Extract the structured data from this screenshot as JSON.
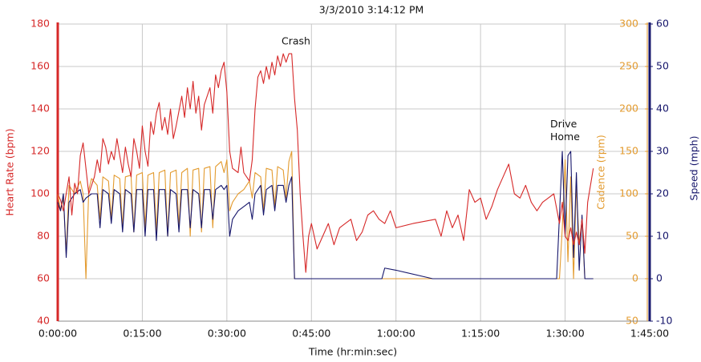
{
  "chart_data": {
    "type": "line",
    "title": "3/3/2010 3:14:12 PM",
    "xlabel": "Time (hr:min:sec)",
    "ylabel": "Heart Rate (bpm)",
    "y2label": "Cadence (rpm)",
    "y3label": "Speed (mph)",
    "annotations": [
      "Crash",
      "Drive Home"
    ],
    "xlim": [
      0,
      105
    ],
    "xticks": [
      {
        "value": 0,
        "label": "0:00:00"
      },
      {
        "value": 15,
        "label": "0:15:00"
      },
      {
        "value": 30,
        "label": "0:30:00"
      },
      {
        "value": 45,
        "label": "0:45:00"
      },
      {
        "value": 60,
        "label": "1:00:00"
      },
      {
        "value": 75,
        "label": "1:15:00"
      },
      {
        "value": 90,
        "label": "1:30:00"
      },
      {
        "value": 105,
        "label": "1:45:00"
      }
    ],
    "ylim": [
      40,
      180
    ],
    "yticks": [
      40,
      60,
      80,
      100,
      120,
      140,
      160,
      180
    ],
    "y2lim": [
      -50,
      300
    ],
    "y2ticks": [
      -50,
      0,
      50,
      100,
      150,
      200,
      250,
      300
    ],
    "y3lim": [
      -10,
      60
    ],
    "y3ticks": [
      -10,
      0,
      10,
      20,
      30,
      40,
      50,
      60
    ],
    "grid": true,
    "axis_colors": {
      "y": "#d62828",
      "y2": "#e39b2f",
      "y3": "#16166b"
    },
    "series": [
      {
        "color": "#e39b2f",
        "axis": "y2",
        "x": [
          0,
          0.5,
          1,
          1.5,
          2,
          3,
          4,
          4.5,
          5,
          5.5,
          6,
          7,
          7.5,
          8,
          9,
          9.5,
          10,
          11,
          11.5,
          12,
          13,
          13.5,
          14,
          15,
          15.5,
          16,
          17,
          17.5,
          18,
          19,
          19.5,
          20,
          21,
          21.5,
          22,
          23,
          23.5,
          24,
          25,
          25.5,
          26,
          27,
          27.5,
          28,
          29,
          29.5,
          30,
          30.5,
          31,
          32,
          33,
          34,
          34.5,
          35,
          36,
          36.5,
          37,
          38,
          38.5,
          39,
          40,
          40.5,
          41,
          41.5,
          42,
          89,
          89.5,
          90,
          90.5,
          91,
          91.5,
          92,
          92.5,
          93,
          93.5,
          94,
          95
        ],
        "values": [
          100,
          80,
          95,
          30,
          110,
          100,
          115,
          100,
          0,
          105,
          118,
          110,
          70,
          120,
          115,
          70,
          122,
          118,
          60,
          120,
          122,
          55,
          122,
          125,
          60,
          122,
          125,
          55,
          125,
          128,
          50,
          125,
          128,
          60,
          125,
          130,
          50,
          128,
          130,
          55,
          130,
          132,
          60,
          132,
          138,
          125,
          140,
          80,
          90,
          100,
          105,
          115,
          95,
          125,
          120,
          80,
          130,
          128,
          85,
          132,
          128,
          95,
          138,
          150,
          0,
          0,
          60,
          140,
          20,
          120,
          0,
          110,
          40,
          70,
          0,
          0,
          0
        ]
      },
      {
        "color": "#16166b",
        "axis": "y3",
        "x": [
          0,
          0.5,
          1,
          1.5,
          2,
          3,
          4,
          4.5,
          5,
          6,
          7,
          7.5,
          8,
          9,
          9.5,
          10,
          11,
          11.5,
          12,
          13,
          13.5,
          14,
          15,
          15.5,
          16,
          17,
          17.5,
          18,
          19,
          19.5,
          20,
          21,
          21.5,
          22,
          23,
          23.5,
          24,
          25,
          25.5,
          26,
          27,
          27.5,
          28,
          29,
          29.5,
          30,
          30.5,
          31,
          32,
          33,
          34,
          34.5,
          35,
          36,
          36.5,
          37,
          38,
          38.5,
          39,
          40,
          40.5,
          41,
          41.5,
          42,
          57.5,
          58,
          60,
          66.5,
          88.5,
          89.5,
          90,
          90.5,
          91,
          91.5,
          92,
          92.5,
          93,
          93.5,
          95
        ],
        "values": [
          18,
          16,
          20,
          5,
          18,
          20,
          21,
          18,
          19,
          20,
          20,
          12,
          21,
          20,
          13,
          21,
          20,
          11,
          21,
          20,
          11,
          21,
          21,
          10,
          21,
          21,
          9,
          21,
          21,
          10,
          21,
          20,
          11,
          21,
          21,
          12,
          21,
          20,
          12,
          21,
          21,
          14,
          21,
          22,
          21,
          22,
          10,
          14,
          16,
          17,
          18,
          14,
          20,
          22,
          15,
          21,
          22,
          16,
          22,
          22,
          18,
          22,
          24,
          0,
          0,
          2.5,
          2,
          0,
          0,
          30,
          10,
          29,
          30,
          5,
          25,
          2,
          15,
          0,
          0
        ]
      },
      {
        "color": "#d62828",
        "axis": "y",
        "x": [
          0,
          0.5,
          1,
          1.5,
          2,
          2.5,
          3,
          3.5,
          4,
          4.5,
          5,
          5.5,
          6,
          6.5,
          7,
          7.5,
          8,
          8.5,
          9,
          9.5,
          10,
          10.5,
          11,
          11.5,
          12,
          12.5,
          13,
          13.5,
          14,
          14.5,
          15,
          15.5,
          16,
          16.5,
          17,
          17.5,
          18,
          18.5,
          19,
          19.5,
          20,
          20.5,
          21,
          22,
          22.5,
          23,
          23.5,
          24,
          24.5,
          25,
          25.5,
          26,
          27,
          27.5,
          28,
          28.5,
          29,
          29.5,
          30,
          30.5,
          31,
          32,
          32.5,
          33,
          34,
          34.5,
          35,
          35.5,
          36,
          36.5,
          37,
          37.5,
          38,
          38.5,
          39,
          39.5,
          40,
          40.5,
          41,
          41.5,
          42,
          42.5,
          43,
          43.5,
          44,
          44.5,
          45,
          46,
          47,
          48,
          49,
          50,
          51,
          52,
          53,
          54,
          55,
          56,
          57,
          58,
          59,
          60,
          63,
          67,
          68,
          69,
          70,
          71,
          72,
          73,
          74,
          75,
          76,
          77,
          78,
          79,
          80,
          81,
          82,
          83,
          84,
          85,
          86,
          87,
          88,
          89,
          89.5,
          90,
          90.5,
          91,
          91.5,
          92,
          92.5,
          93,
          93.5,
          94,
          95
        ],
        "values": [
          100,
          97,
          92,
          100,
          108,
          90,
          105,
          100,
          118,
          124,
          112,
          100,
          104,
          108,
          116,
          110,
          126,
          122,
          114,
          120,
          116,
          126,
          118,
          110,
          122,
          114,
          108,
          126,
          120,
          112,
          132,
          120,
          113,
          134,
          128,
          138,
          143,
          130,
          136,
          128,
          140,
          126,
          132,
          146,
          136,
          150,
          140,
          153,
          138,
          146,
          130,
          142,
          150,
          138,
          156,
          150,
          158,
          162,
          148,
          120,
          112,
          110,
          122,
          110,
          106,
          116,
          140,
          155,
          158,
          152,
          160,
          154,
          162,
          156,
          165,
          160,
          166,
          162,
          166,
          166,
          145,
          130,
          100,
          80,
          63,
          80,
          86,
          74,
          80,
          86,
          76,
          84,
          86,
          88,
          78,
          82,
          90,
          92,
          88,
          86,
          92,
          84,
          86,
          88,
          80,
          92,
          84,
          90,
          78,
          102,
          96,
          98,
          88,
          94,
          102,
          108,
          114,
          100,
          98,
          104,
          96,
          92,
          96,
          98,
          100,
          86,
          96,
          80,
          78,
          84,
          76,
          82,
          76,
          88,
          72,
          96,
          112
        ]
      }
    ]
  }
}
